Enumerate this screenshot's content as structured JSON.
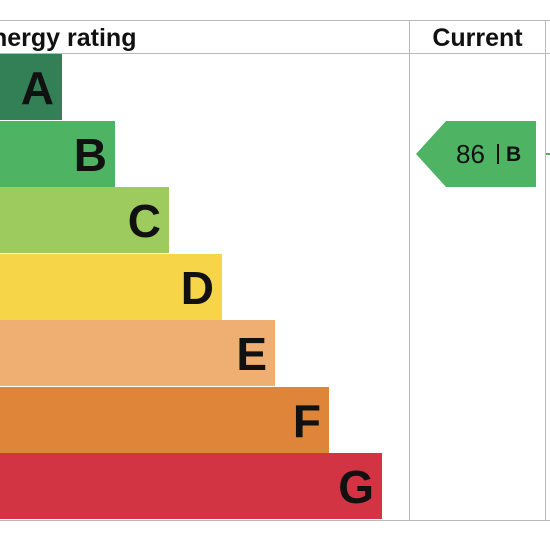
{
  "header": {
    "rating_label": "nergy rating",
    "current_label": "Current"
  },
  "chart_data": {
    "type": "bar",
    "categories": [
      "A",
      "B",
      "C",
      "D",
      "E",
      "F",
      "G"
    ],
    "current": {
      "value": "86",
      "band": "B"
    }
  },
  "colors": {
    "A": "#337f56",
    "B": "#4eb464",
    "C": "#9ecb5d",
    "D": "#f7d548",
    "E": "#efaf73",
    "F": "#de853a",
    "G": "#d23443",
    "arrow": "#4eb464",
    "grid": "#b9b9b9"
  }
}
